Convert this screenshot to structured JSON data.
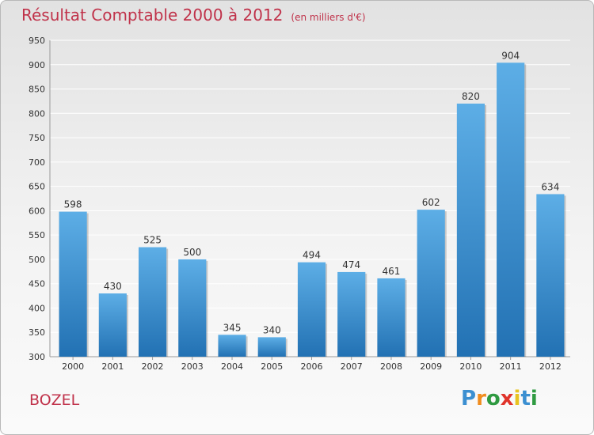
{
  "chart_data": {
    "type": "bar",
    "title": "Résultat Comptable 2000 à 2012",
    "subtitle": "(en milliers d'€)",
    "categories": [
      "2000",
      "2001",
      "2002",
      "2003",
      "2004",
      "2005",
      "2006",
      "2007",
      "2008",
      "2009",
      "2010",
      "2011",
      "2012"
    ],
    "values": [
      598,
      430,
      525,
      500,
      345,
      340,
      494,
      474,
      461,
      602,
      820,
      904,
      634
    ],
    "ylim": [
      300,
      950
    ],
    "yticks": [
      300,
      350,
      400,
      450,
      500,
      550,
      600,
      650,
      700,
      750,
      800,
      850,
      900,
      950
    ],
    "xlabel": "",
    "ylabel": "",
    "grid": true
  },
  "location": "BOZEL",
  "brand": "Proxiti",
  "colors": {
    "title": "#c0324a",
    "bar_top": "#5daee6",
    "bar_bottom": "#2271b3",
    "grid": "#ffffff"
  }
}
